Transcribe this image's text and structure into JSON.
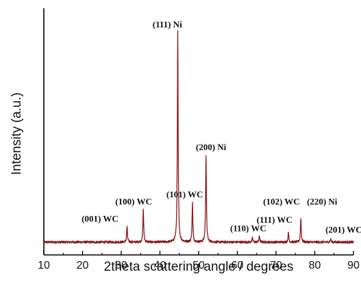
{
  "chart_data": {
    "type": "line",
    "title": "",
    "xlabel": "2theta scattering angle / degrees",
    "ylabel": "Intensity (a.u.)",
    "xlim": [
      10,
      90
    ],
    "ylim": [
      0,
      100
    ],
    "x_ticks": [
      "10",
      "20",
      "30",
      "40",
      "50",
      "60",
      "70",
      "80",
      "90"
    ],
    "grid": false,
    "legend": "none",
    "line_color": "#8b1a1a",
    "baseline": 1.5,
    "peaks": [
      {
        "x": 31.5,
        "y": 9
      },
      {
        "x": 35.7,
        "y": 17
      },
      {
        "x": 44.6,
        "y": 100
      },
      {
        "x": 48.4,
        "y": 20
      },
      {
        "x": 51.9,
        "y": 42
      },
      {
        "x": 63.9,
        "y": 3.5
      },
      {
        "x": 65.7,
        "y": 4.5
      },
      {
        "x": 73.2,
        "y": 6
      },
      {
        "x": 76.4,
        "y": 13
      },
      {
        "x": 84.1,
        "y": 3
      }
    ],
    "annotations": [
      {
        "text": "(001) WC",
        "x": 24.5,
        "y": 11
      },
      {
        "text": "(100) WC",
        "x": 33.2,
        "y": 19
      },
      {
        "text": "(111) Ni",
        "x": 41.9,
        "y": 102
      },
      {
        "text": "(101) WC",
        "x": 46.4,
        "y": 22.5
      },
      {
        "text": "(200) Ni",
        "x": 53.2,
        "y": 44.5
      },
      {
        "text": "(110) WC",
        "x": 62.8,
        "y": 6.5
      },
      {
        "text": "(111) WC",
        "x": 69.6,
        "y": 10.5
      },
      {
        "text": "(102) WC",
        "x": 71.4,
        "y": 19
      },
      {
        "text": "(220) Ni",
        "x": 81.9,
        "y": 19
      },
      {
        "text": "(201) WC",
        "x": 87.5,
        "y": 6
      }
    ]
  }
}
